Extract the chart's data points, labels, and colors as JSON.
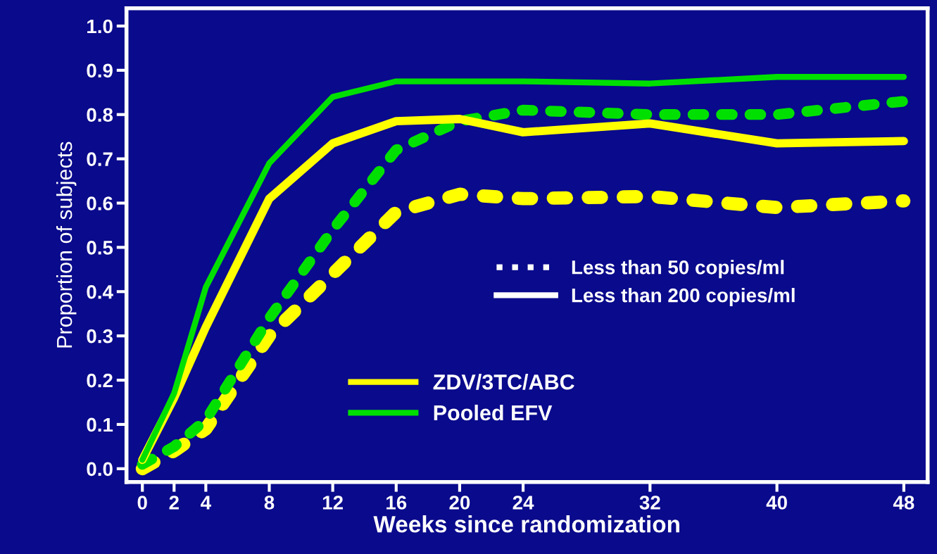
{
  "chart_data": {
    "type": "line",
    "xlabel": "Weeks since randomization",
    "ylabel": "Proportion of subjects",
    "x": [
      0,
      2,
      4,
      8,
      12,
      16,
      20,
      24,
      32,
      40,
      48
    ],
    "series": [
      {
        "color": "#ffff00",
        "line_style": "dotted",
        "values": [
          0.0,
          0.04,
          0.09,
          0.3,
          0.44,
          0.58,
          0.62,
          0.61,
          0.615,
          0.59,
          0.605
        ]
      },
      {
        "color": "#00e000",
        "line_style": "dotted",
        "values": [
          0.01,
          0.05,
          0.11,
          0.34,
          0.54,
          0.72,
          0.785,
          0.81,
          0.8,
          0.8,
          0.83
        ]
      },
      {
        "name": "ZDV/3TC/ABC",
        "color": "#ffff00",
        "line_style": "solid",
        "values": [
          0.02,
          0.16,
          0.32,
          0.61,
          0.735,
          0.785,
          0.79,
          0.76,
          0.78,
          0.735,
          0.74
        ]
      },
      {
        "name": "Pooled EFV",
        "color": "#00e000",
        "line_style": "solid",
        "values": [
          0.02,
          0.17,
          0.41,
          0.69,
          0.84,
          0.875,
          0.875,
          0.875,
          0.87,
          0.885,
          0.885
        ]
      }
    ],
    "annotations": [
      "Less than 50 copies/ml",
      "Less than 200 copies/ml"
    ],
    "xlim": [
      -1,
      49.5
    ],
    "ylim": [
      -0.03,
      1.04
    ],
    "xticks": [
      0,
      2,
      4,
      8,
      12,
      16,
      20,
      24,
      32,
      40,
      48
    ],
    "yticks": [
      {
        "value": 0,
        "label": "0.0"
      },
      {
        "value": 0.1,
        "label": "0.1"
      },
      {
        "value": 0.2,
        "label": "0.2"
      },
      {
        "value": 0.3,
        "label": "0.3"
      },
      {
        "value": 0.4,
        "label": "0.4"
      },
      {
        "value": 0.5,
        "label": "0.5"
      },
      {
        "value": 0.6,
        "label": "0.6"
      },
      {
        "value": 0.7,
        "label": "0.7"
      },
      {
        "value": 0.8,
        "label": "0.8"
      },
      {
        "value": 0.9,
        "label": "0.9"
      },
      {
        "value": 1.0,
        "label": "1.0"
      }
    ],
    "legend": "bottom",
    "grid": false,
    "marker": "none"
  }
}
